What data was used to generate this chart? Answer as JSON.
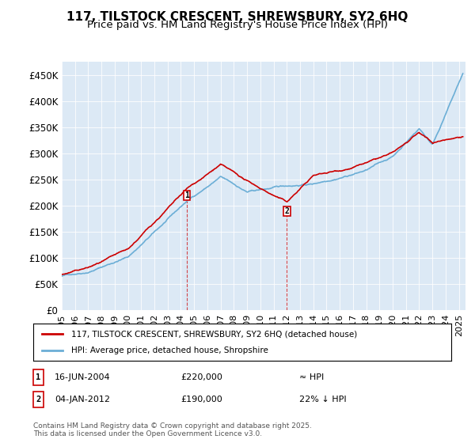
{
  "title": "117, TILSTOCK CRESCENT, SHREWSBURY, SY2 6HQ",
  "subtitle": "Price paid vs. HM Land Registry's House Price Index (HPI)",
  "ylabel_ticks": [
    "£0",
    "£50K",
    "£100K",
    "£150K",
    "£200K",
    "£250K",
    "£300K",
    "£350K",
    "£400K",
    "£450K"
  ],
  "ytick_values": [
    0,
    50000,
    100000,
    150000,
    200000,
    250000,
    300000,
    350000,
    400000,
    450000
  ],
  "ylim": [
    0,
    475000
  ],
  "xlim_start": 1995,
  "xlim_end": 2025.5,
  "background_color": "#dce9f5",
  "plot_bg_color": "#dce9f5",
  "hpi_color": "#6baed6",
  "price_color": "#cc0000",
  "sale1_x": 2004.45,
  "sale1_y": 220000,
  "sale2_x": 2012.01,
  "sale2_y": 190000,
  "legend_label1": "117, TILSTOCK CRESCENT, SHREWSBURY, SY2 6HQ (detached house)",
  "legend_label2": "HPI: Average price, detached house, Shropshire",
  "annotation1_label": "1",
  "annotation1_date": "16-JUN-2004",
  "annotation1_price": "£220,000",
  "annotation1_hpi": "≈ HPI",
  "annotation2_label": "2",
  "annotation2_date": "04-JAN-2012",
  "annotation2_price": "£190,000",
  "annotation2_hpi": "22% ↓ HPI",
  "footer": "Contains HM Land Registry data © Crown copyright and database right 2025.\nThis data is licensed under the Open Government Licence v3.0.",
  "title_fontsize": 11,
  "subtitle_fontsize": 9.5,
  "tick_fontsize": 8.5
}
